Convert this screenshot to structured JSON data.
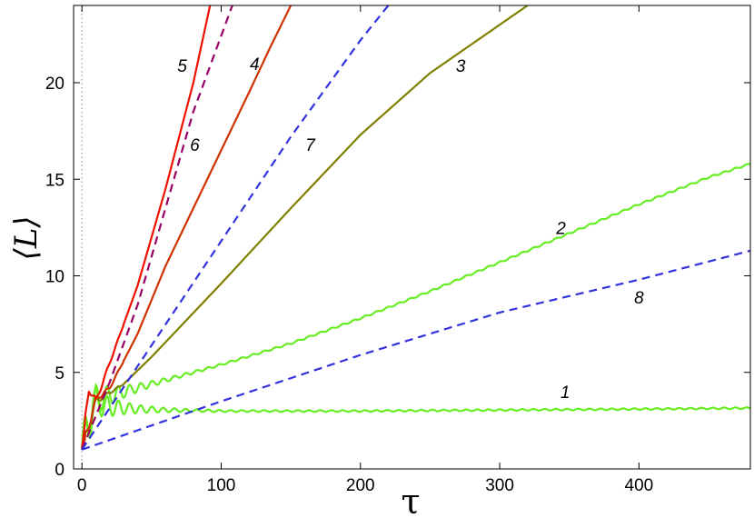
{
  "chart_data": {
    "type": "line",
    "title": "",
    "xlabel": "τ",
    "ylabel": "⟨L⟩",
    "xlim": [
      -6,
      480
    ],
    "ylim": [
      0,
      24
    ],
    "xticks": [
      0,
      100,
      200,
      300,
      400
    ],
    "yticks": [
      0,
      5,
      10,
      15,
      20
    ],
    "grid": false,
    "legend": "none",
    "reference_line": {
      "x": 0,
      "style": "dotted",
      "color": "#999999"
    },
    "series": [
      {
        "label": "1",
        "color": "#66ee22",
        "dash": "solid",
        "oscillating": true,
        "label_pos": [
          347,
          4
        ],
        "points": [
          [
            0,
            1
          ],
          [
            8,
            3.5
          ],
          [
            20,
            3.2
          ],
          [
            40,
            3.1
          ],
          [
            60,
            3.05
          ],
          [
            100,
            3.0
          ],
          [
            200,
            3.0
          ],
          [
            300,
            3.05
          ],
          [
            400,
            3.1
          ],
          [
            480,
            3.15
          ]
        ]
      },
      {
        "label": "2",
        "color": "#66ee22",
        "dash": "solid",
        "oscillating": true,
        "label_pos": [
          344,
          12.5
        ],
        "points": [
          [
            0,
            1
          ],
          [
            10,
            3.6
          ],
          [
            30,
            4.0
          ],
          [
            50,
            4.4
          ],
          [
            100,
            5.4
          ],
          [
            150,
            6.5
          ],
          [
            200,
            7.8
          ],
          [
            250,
            9.2
          ],
          [
            300,
            10.7
          ],
          [
            350,
            12.2
          ],
          [
            400,
            13.7
          ],
          [
            450,
            15.1
          ],
          [
            480,
            15.8
          ]
        ]
      },
      {
        "label": "3",
        "color": "#808000",
        "dash": "solid",
        "oscillating": false,
        "label_pos": [
          272,
          20.9
        ],
        "points": [
          [
            0,
            1
          ],
          [
            10,
            3.5
          ],
          [
            30,
            4.4
          ],
          [
            50,
            5.8
          ],
          [
            100,
            9.6
          ],
          [
            150,
            13.5
          ],
          [
            200,
            17.3
          ],
          [
            250,
            20.5
          ],
          [
            300,
            23.0
          ],
          [
            320,
            24.0
          ]
        ]
      },
      {
        "label": "4",
        "color": "#cc3300",
        "dash": "solid",
        "oscillating": false,
        "label_pos": [
          124,
          21.0
        ],
        "points": [
          [
            0,
            1
          ],
          [
            10,
            3.6
          ],
          [
            20,
            4.2
          ],
          [
            40,
            7.0
          ],
          [
            60,
            10.5
          ],
          [
            80,
            13.5
          ],
          [
            100,
            16.5
          ],
          [
            120,
            19.5
          ],
          [
            135,
            21.8
          ],
          [
            150,
            24.0
          ]
        ]
      },
      {
        "label": "5",
        "color": "#ee1100",
        "dash": "solid",
        "oscillating": false,
        "label_pos": [
          72,
          20.9
        ],
        "points": [
          [
            0,
            1
          ],
          [
            5,
            4.2
          ],
          [
            10,
            3.5
          ],
          [
            20,
            5.5
          ],
          [
            40,
            9.5
          ],
          [
            60,
            14.5
          ],
          [
            80,
            20.0
          ],
          [
            92,
            24.0
          ]
        ]
      },
      {
        "label": "6",
        "color": "#990066",
        "dash": "dashed",
        "oscillating": false,
        "label_pos": [
          81,
          16.8
        ],
        "points": [
          [
            0,
            1
          ],
          [
            20,
            4.5
          ],
          [
            40,
            8.5
          ],
          [
            60,
            13.5
          ],
          [
            80,
            18.5
          ],
          [
            108,
            24.0
          ]
        ]
      },
      {
        "label": "7",
        "color": "#3333dd",
        "dash": "dashed",
        "oscillating": false,
        "label_pos": [
          164,
          16.8
        ],
        "points": [
          [
            0,
            1
          ],
          [
            50,
            6.4
          ],
          [
            100,
            11.8
          ],
          [
            150,
            17.2
          ],
          [
            200,
            22.2
          ],
          [
            220,
            24.0
          ]
        ]
      },
      {
        "label": "8",
        "color": "#3333dd",
        "dash": "dashed",
        "oscillating": false,
        "label_pos": [
          400,
          8.9
        ],
        "points": [
          [
            0,
            1
          ],
          [
            100,
            3.5
          ],
          [
            200,
            5.9
          ],
          [
            300,
            8.1
          ],
          [
            400,
            9.8
          ],
          [
            480,
            11.3
          ]
        ]
      }
    ]
  }
}
